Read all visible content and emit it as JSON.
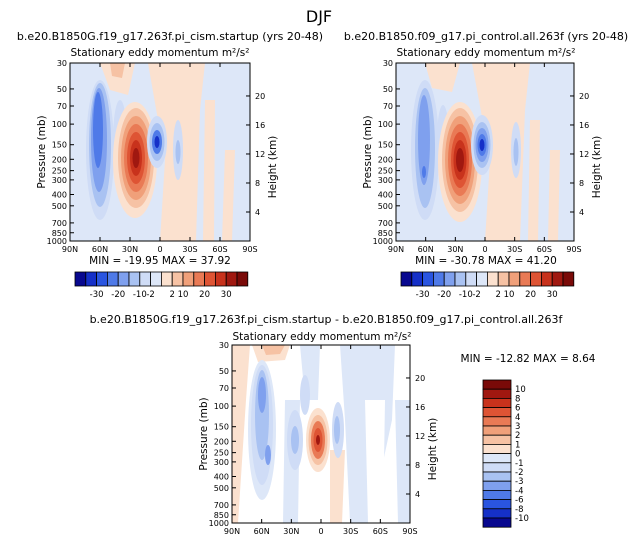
{
  "page_title": "DJF",
  "chart_data": [
    {
      "type": "heatmap",
      "case": "b.e20.B1850G.f19_g17.263f.pi_cism.startup (yrs 20-48)",
      "title": "Stationary eddy momentum m²/s²",
      "ylabel_left": "Pressure (mb)",
      "ylabel_right": "Height (km)",
      "x_ticks": [
        "90N",
        "60N",
        "30N",
        "0",
        "30S",
        "60S",
        "90S"
      ],
      "p_ticks": [
        "30",
        "50",
        "70",
        "100",
        "150",
        "200",
        "250",
        "300",
        "400",
        "500",
        "700",
        "850",
        "1000"
      ],
      "z_ticks": [
        "20",
        "16",
        "12",
        "8",
        "4"
      ],
      "stats": "MIN = -19.95   MAX = 37.92",
      "colorbar_labels": [
        "-30",
        "-20",
        "-10",
        "-2",
        "2",
        "10",
        "20",
        "30"
      ]
    },
    {
      "type": "heatmap",
      "case": "b.e20.B1850.f09_g17.pi_control.all.263f (yrs 20-48)",
      "title": "Stationary eddy momentum m²/s²",
      "ylabel_left": "Pressure (mb)",
      "ylabel_right": "Height (km)",
      "x_ticks": [
        "90N",
        "60N",
        "30N",
        "0",
        "30S",
        "60S",
        "90S"
      ],
      "p_ticks": [
        "30",
        "50",
        "70",
        "100",
        "150",
        "200",
        "250",
        "300",
        "400",
        "500",
        "700",
        "850",
        "1000"
      ],
      "z_ticks": [
        "20",
        "16",
        "12",
        "8",
        "4"
      ],
      "stats": "MIN = -30.78   MAX = 41.20",
      "colorbar_labels": [
        "-30",
        "-20",
        "-10",
        "-2",
        "2",
        "10",
        "20",
        "30"
      ]
    },
    {
      "type": "heatmap",
      "case": "b.e20.B1850G.f19_g17.263f.pi_cism.startup - b.e20.B1850.f09_g17.pi_control.all.263f",
      "title": "Stationary eddy momentum m²/s²",
      "ylabel_left": "Pressure (mb)",
      "ylabel_right": "Height (km)",
      "x_ticks": [
        "90N",
        "60N",
        "30N",
        "0",
        "30S",
        "60S",
        "90S"
      ],
      "p_ticks": [
        "30",
        "50",
        "70",
        "100",
        "150",
        "200",
        "250",
        "300",
        "400",
        "500",
        "700",
        "850",
        "1000"
      ],
      "z_ticks": [
        "20",
        "16",
        "12",
        "8",
        "4"
      ],
      "stats": "MIN = -12.82   MAX =   8.64",
      "colorbar_labels": [
        "10",
        "8",
        "6",
        "4",
        "3",
        "2",
        "1",
        "0",
        "-1",
        "-2",
        "-3",
        "-4",
        "-6",
        "-8",
        "-10"
      ]
    }
  ],
  "colors": {
    "scale": [
      "#08088f",
      "#1530c8",
      "#2a55e0",
      "#4f7ae8",
      "#7fa0ee",
      "#a9c2f2",
      "#cfdcf6",
      "#dde7f8",
      "#fbe1cf",
      "#f6c2a4",
      "#f0a07a",
      "#e97a55",
      "#de5434",
      "#c8321c",
      "#a01810",
      "#7a0a08"
    ]
  }
}
